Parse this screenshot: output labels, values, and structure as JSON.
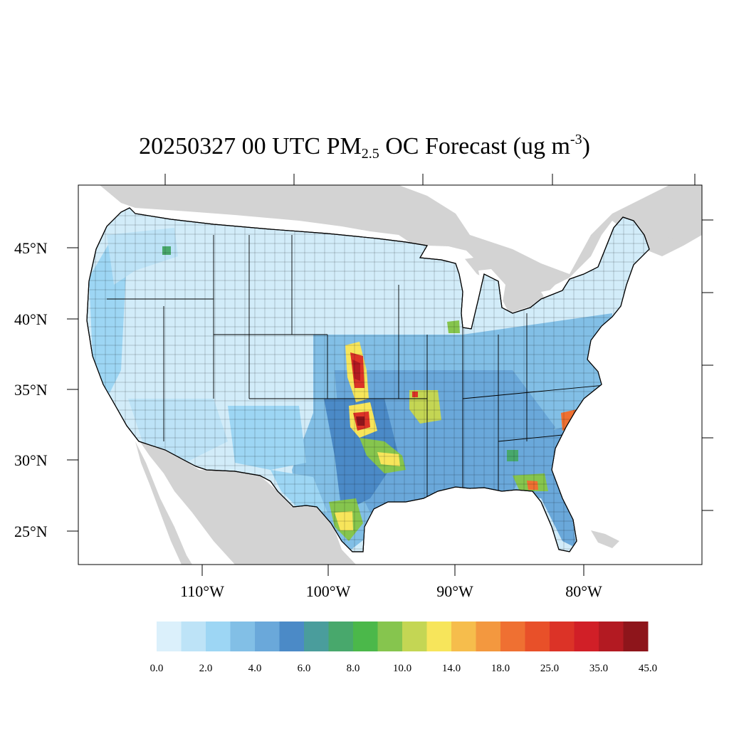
{
  "title": {
    "prefix": "20250327 00 UTC PM",
    "subscript": "2.5",
    "middle": " OC Forecast (ug m",
    "superscript": "-3",
    "suffix": ")"
  },
  "axes": {
    "lat_labels": [
      "45°N",
      "40°N",
      "35°N",
      "30°N",
      "25°N"
    ],
    "lon_labels": [
      "110°W",
      "100°W",
      "90°W",
      "80°W"
    ]
  },
  "colorbar": {
    "colors": [
      "#dbf0fb",
      "#bde3f7",
      "#9dd6f4",
      "#82bfe6",
      "#6aa8da",
      "#4b8ac7",
      "#4a9d9c",
      "#48a86c",
      "#4bb84a",
      "#86c54e",
      "#c4d654",
      "#f7e55b",
      "#f6bd4c",
      "#f3983f",
      "#ef7032",
      "#e85029",
      "#dc3327",
      "#d11f27",
      "#b31a22",
      "#8e151b"
    ],
    "labels": [
      "0.0",
      "2.0",
      "4.0",
      "6.0",
      "8.0",
      "10.0",
      "14.0",
      "18.0",
      "25.0",
      "35.0",
      "45.0"
    ]
  },
  "colors": {
    "land_outside": "#d3d3d3",
    "water": "#ffffff",
    "border": "#000000"
  }
}
